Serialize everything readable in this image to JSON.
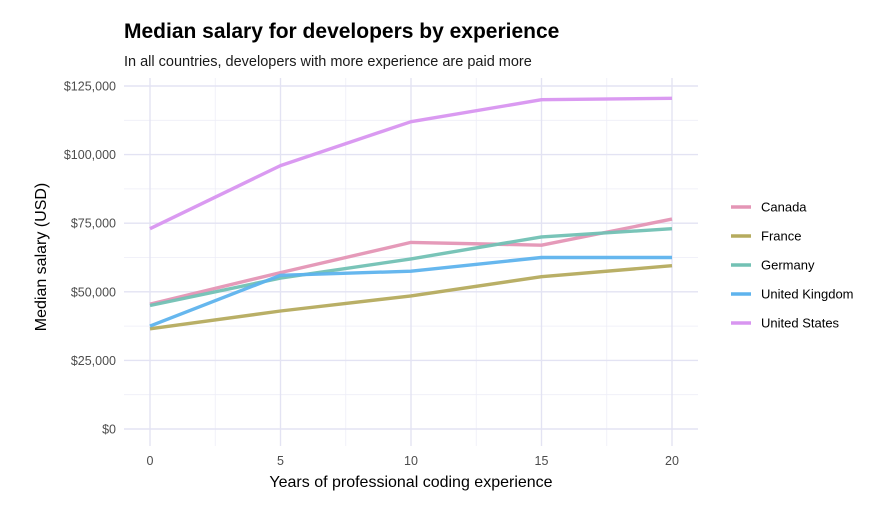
{
  "chart_data": {
    "type": "line",
    "title": "Median salary for developers by experience",
    "subtitle": "In all countries, developers with more experience are paid more",
    "xlabel": "Years of professional coding experience",
    "ylabel": "Median salary (USD)",
    "xlim": [
      0,
      20
    ],
    "ylim": [
      0,
      125000
    ],
    "x_ticks": [
      0,
      5,
      10,
      15,
      20
    ],
    "x_tick_labels": [
      "0",
      "5",
      "10",
      "15",
      "20"
    ],
    "y_ticks": [
      0,
      25000,
      50000,
      75000,
      100000,
      125000
    ],
    "y_tick_labels": [
      "$0",
      "$25,000",
      "$50,000",
      "$75,000",
      "$100,000",
      "$125,000"
    ],
    "grid": true,
    "legend_position": "right",
    "x": [
      0,
      5,
      10,
      15,
      20
    ],
    "series": [
      {
        "name": "Canada",
        "color": "#e495b5",
        "values": [
          45500,
          57000,
          68000,
          67000,
          76500
        ]
      },
      {
        "name": "France",
        "color": "#b5ab5e",
        "values": [
          36500,
          43000,
          48500,
          55500,
          59500
        ]
      },
      {
        "name": "Germany",
        "color": "#72c1b4",
        "values": [
          45000,
          55000,
          62000,
          70000,
          73000
        ]
      },
      {
        "name": "United Kingdom",
        "color": "#5eb3ed",
        "values": [
          37500,
          56000,
          57500,
          62500,
          62500
        ]
      },
      {
        "name": "United States",
        "color": "#d895f0",
        "values": [
          73000,
          96000,
          112000,
          120000,
          120500
        ]
      }
    ]
  }
}
